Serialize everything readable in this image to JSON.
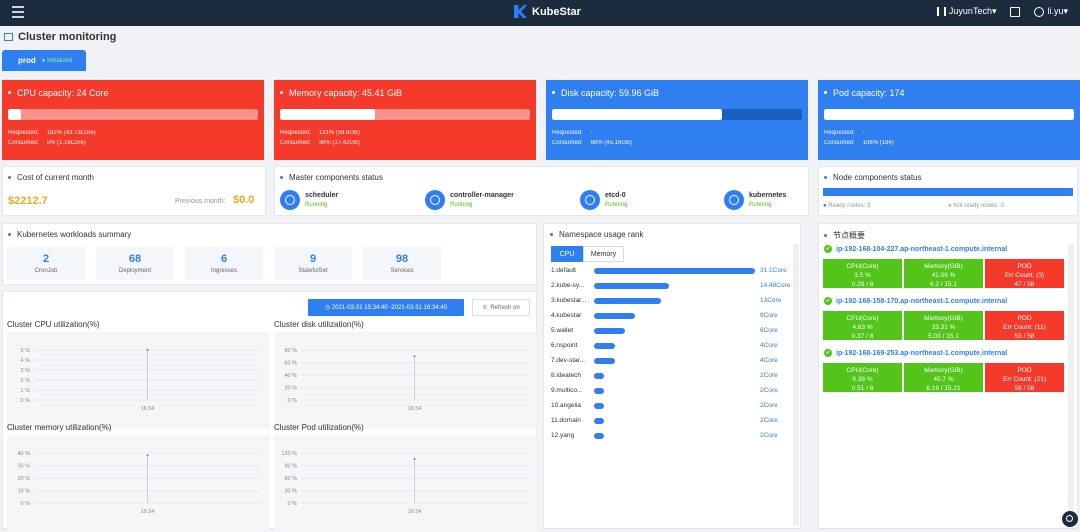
{
  "topbar": {
    "brand": "KubeStar",
    "org": "JuyunTech▾",
    "user": "li.yu▾",
    "lang_icon": "language-icon"
  },
  "page": {
    "title": "Cluster monitoring",
    "env_tab": "prod",
    "env_status": "● Initialized"
  },
  "capacity": [
    {
      "title": "CPU capacity: 24 Core",
      "fill": 0.05,
      "requested_label": "Requested:",
      "requested": "182% (43.73Core)",
      "consumed_label": "Consumed:",
      "consumed": "5% (1.16Core)",
      "color": "#f5392a"
    },
    {
      "title": "Memory capacity: 45.41 GiB",
      "fill": 0.38,
      "requested_label": "Requested:",
      "requested": "131% (59.6GB)",
      "consumed_label": "Consumed:",
      "consumed": "38% (17.42GB)",
      "color": "#f5392a"
    },
    {
      "title": "Disk capacity: 59.96 GiB",
      "fill": 0.68,
      "requested_label": "Requested:",
      "requested": "-",
      "consumed_label": "Consumed:",
      "consumed": "68% (45.16GB)",
      "color": "#2f7ff0"
    },
    {
      "title": "Pod capacity: 174",
      "fill": 1.0,
      "requested_label": "Requested:",
      "requested": "-",
      "consumed_label": "Consumed:",
      "consumed": "106% (184)",
      "color": "#2f7ff0"
    }
  ],
  "cost": {
    "title": "Cost of current month",
    "value": "$2212.7",
    "prev_label": "Previous month:",
    "prev_value": "$0.0"
  },
  "master": {
    "title": "Master components status",
    "items": [
      {
        "name": "scheduler",
        "status": "Running"
      },
      {
        "name": "controller-manager",
        "status": "Running"
      },
      {
        "name": "etcd-0",
        "status": "Running"
      },
      {
        "name": "kubernetes",
        "status": "Running"
      }
    ]
  },
  "nodes_status": {
    "title": "Node components status",
    "ready_label": "Ready nodes:",
    "ready": "3",
    "not_ready_label": "Not ready nodes:",
    "not_ready": "0"
  },
  "workloads": {
    "title": "Kubernetes workloads summary",
    "items": [
      {
        "count": "2",
        "label": "CronJob"
      },
      {
        "count": "68",
        "label": "Deployment"
      },
      {
        "count": "6",
        "label": "Ingresses"
      },
      {
        "count": "9",
        "label": "StatefulSet"
      },
      {
        "count": "98",
        "label": "Services"
      }
    ]
  },
  "utilization": {
    "date_range": "◷ 2021-03-31 15:34:40 -2021-03-31 16:34:40",
    "refresh": "Refresh on"
  },
  "chart_data": [
    {
      "type": "line",
      "title": "Cluster CPU utilization(%)",
      "y_ticks": [
        "5 %",
        "4 %",
        "3 %",
        "2 %",
        "1 %",
        "0 %"
      ],
      "ylim": [
        0,
        5
      ],
      "x_ticks": [
        "16:34"
      ],
      "x": [
        "16:34"
      ],
      "values": [
        5
      ]
    },
    {
      "type": "line",
      "title": "Cluster disk utilization(%)",
      "y_ticks": [
        "80 %",
        "60 %",
        "40 %",
        "20 %",
        "0 %"
      ],
      "ylim": [
        0,
        80
      ],
      "x_ticks": [
        "16:34"
      ],
      "x": [
        "16:34"
      ],
      "values": [
        70
      ]
    },
    {
      "type": "line",
      "title": "Cluster memory utilization(%)",
      "y_ticks": [
        "40 %",
        "30 %",
        "20 %",
        "10 %",
        "0 %"
      ],
      "ylim": [
        0,
        40
      ],
      "x_ticks": [
        "16:34"
      ],
      "x": [
        "16:34"
      ],
      "values": [
        38
      ]
    },
    {
      "type": "line",
      "title": "Cluster Pod utilization(%)",
      "y_ticks": [
        "120 %",
        "90 %",
        "60 %",
        "30 %",
        "0 %"
      ],
      "ylim": [
        0,
        120
      ],
      "x_ticks": [
        "16:34"
      ],
      "x": [
        "16:34"
      ],
      "values": [
        106
      ]
    }
  ],
  "namespace": {
    "title": "Namespace usage rank",
    "tab_cpu": "CPU",
    "tab_memory": "Memory",
    "max": 31.1,
    "rows": [
      {
        "name": "1.default",
        "value": 31.1,
        "label": "31.1Core"
      },
      {
        "name": "2.kube-sy...",
        "value": 14.48,
        "label": "14.48Core"
      },
      {
        "name": "3.kubestar...",
        "value": 13,
        "label": "13Core"
      },
      {
        "name": "4.kubestar",
        "value": 8,
        "label": "8Core"
      },
      {
        "name": "5.wallet",
        "value": 6,
        "label": "6Core"
      },
      {
        "name": "6.nspoint",
        "value": 4,
        "label": "4Core"
      },
      {
        "name": "7.dev-star...",
        "value": 4,
        "label": "4Core"
      },
      {
        "name": "8.ideatech",
        "value": 2,
        "label": "2Core"
      },
      {
        "name": "9.multico...",
        "value": 2,
        "label": "2Core"
      },
      {
        "name": "10.angelia",
        "value": 2,
        "label": "2Core"
      },
      {
        "name": "11.domain",
        "value": 2,
        "label": "2Core"
      },
      {
        "name": "12.yang",
        "value": 2,
        "label": "2Core"
      }
    ]
  },
  "node_overview": {
    "title": "节点概要",
    "nodes": [
      {
        "name": "ip-192-168-104-227.ap-northeast-1.compute.internal",
        "cpu_label": "CPU(Core)",
        "cpu_pct": "3.5 %",
        "cpu_val": "0.28 / 8",
        "mem_label": "Memory(GiB)",
        "mem_pct": "41.06 %",
        "mem_val": "6.2 / 15.1",
        "pod_label": "POD",
        "err": "Err Count: (3)",
        "pods": "47 / 58"
      },
      {
        "name": "ip-192-168-158-170.ap-northeast-1.compute.internal",
        "cpu_label": "CPU(Core)",
        "cpu_pct": "4.63 %",
        "cpu_val": "0.37 / 8",
        "mem_label": "Memory(GiB)",
        "mem_pct": "33.31 %",
        "mem_val": "5.03 / 15.1",
        "pod_label": "POD",
        "err": "Err Count: (11)",
        "pods": "53 / 58"
      },
      {
        "name": "ip-192-168-169-253.ap-northeast-1.compute.internal",
        "cpu_label": "CPU(Core)",
        "cpu_pct": "6.38 %",
        "cpu_val": "0.51 / 8",
        "mem_label": "Memory(GiB)",
        "mem_pct": "40.7 %",
        "mem_val": "6.19 / 15.21",
        "pod_label": "POD",
        "err": "Err Count: (21)",
        "pods": "58 / 58"
      }
    ]
  }
}
